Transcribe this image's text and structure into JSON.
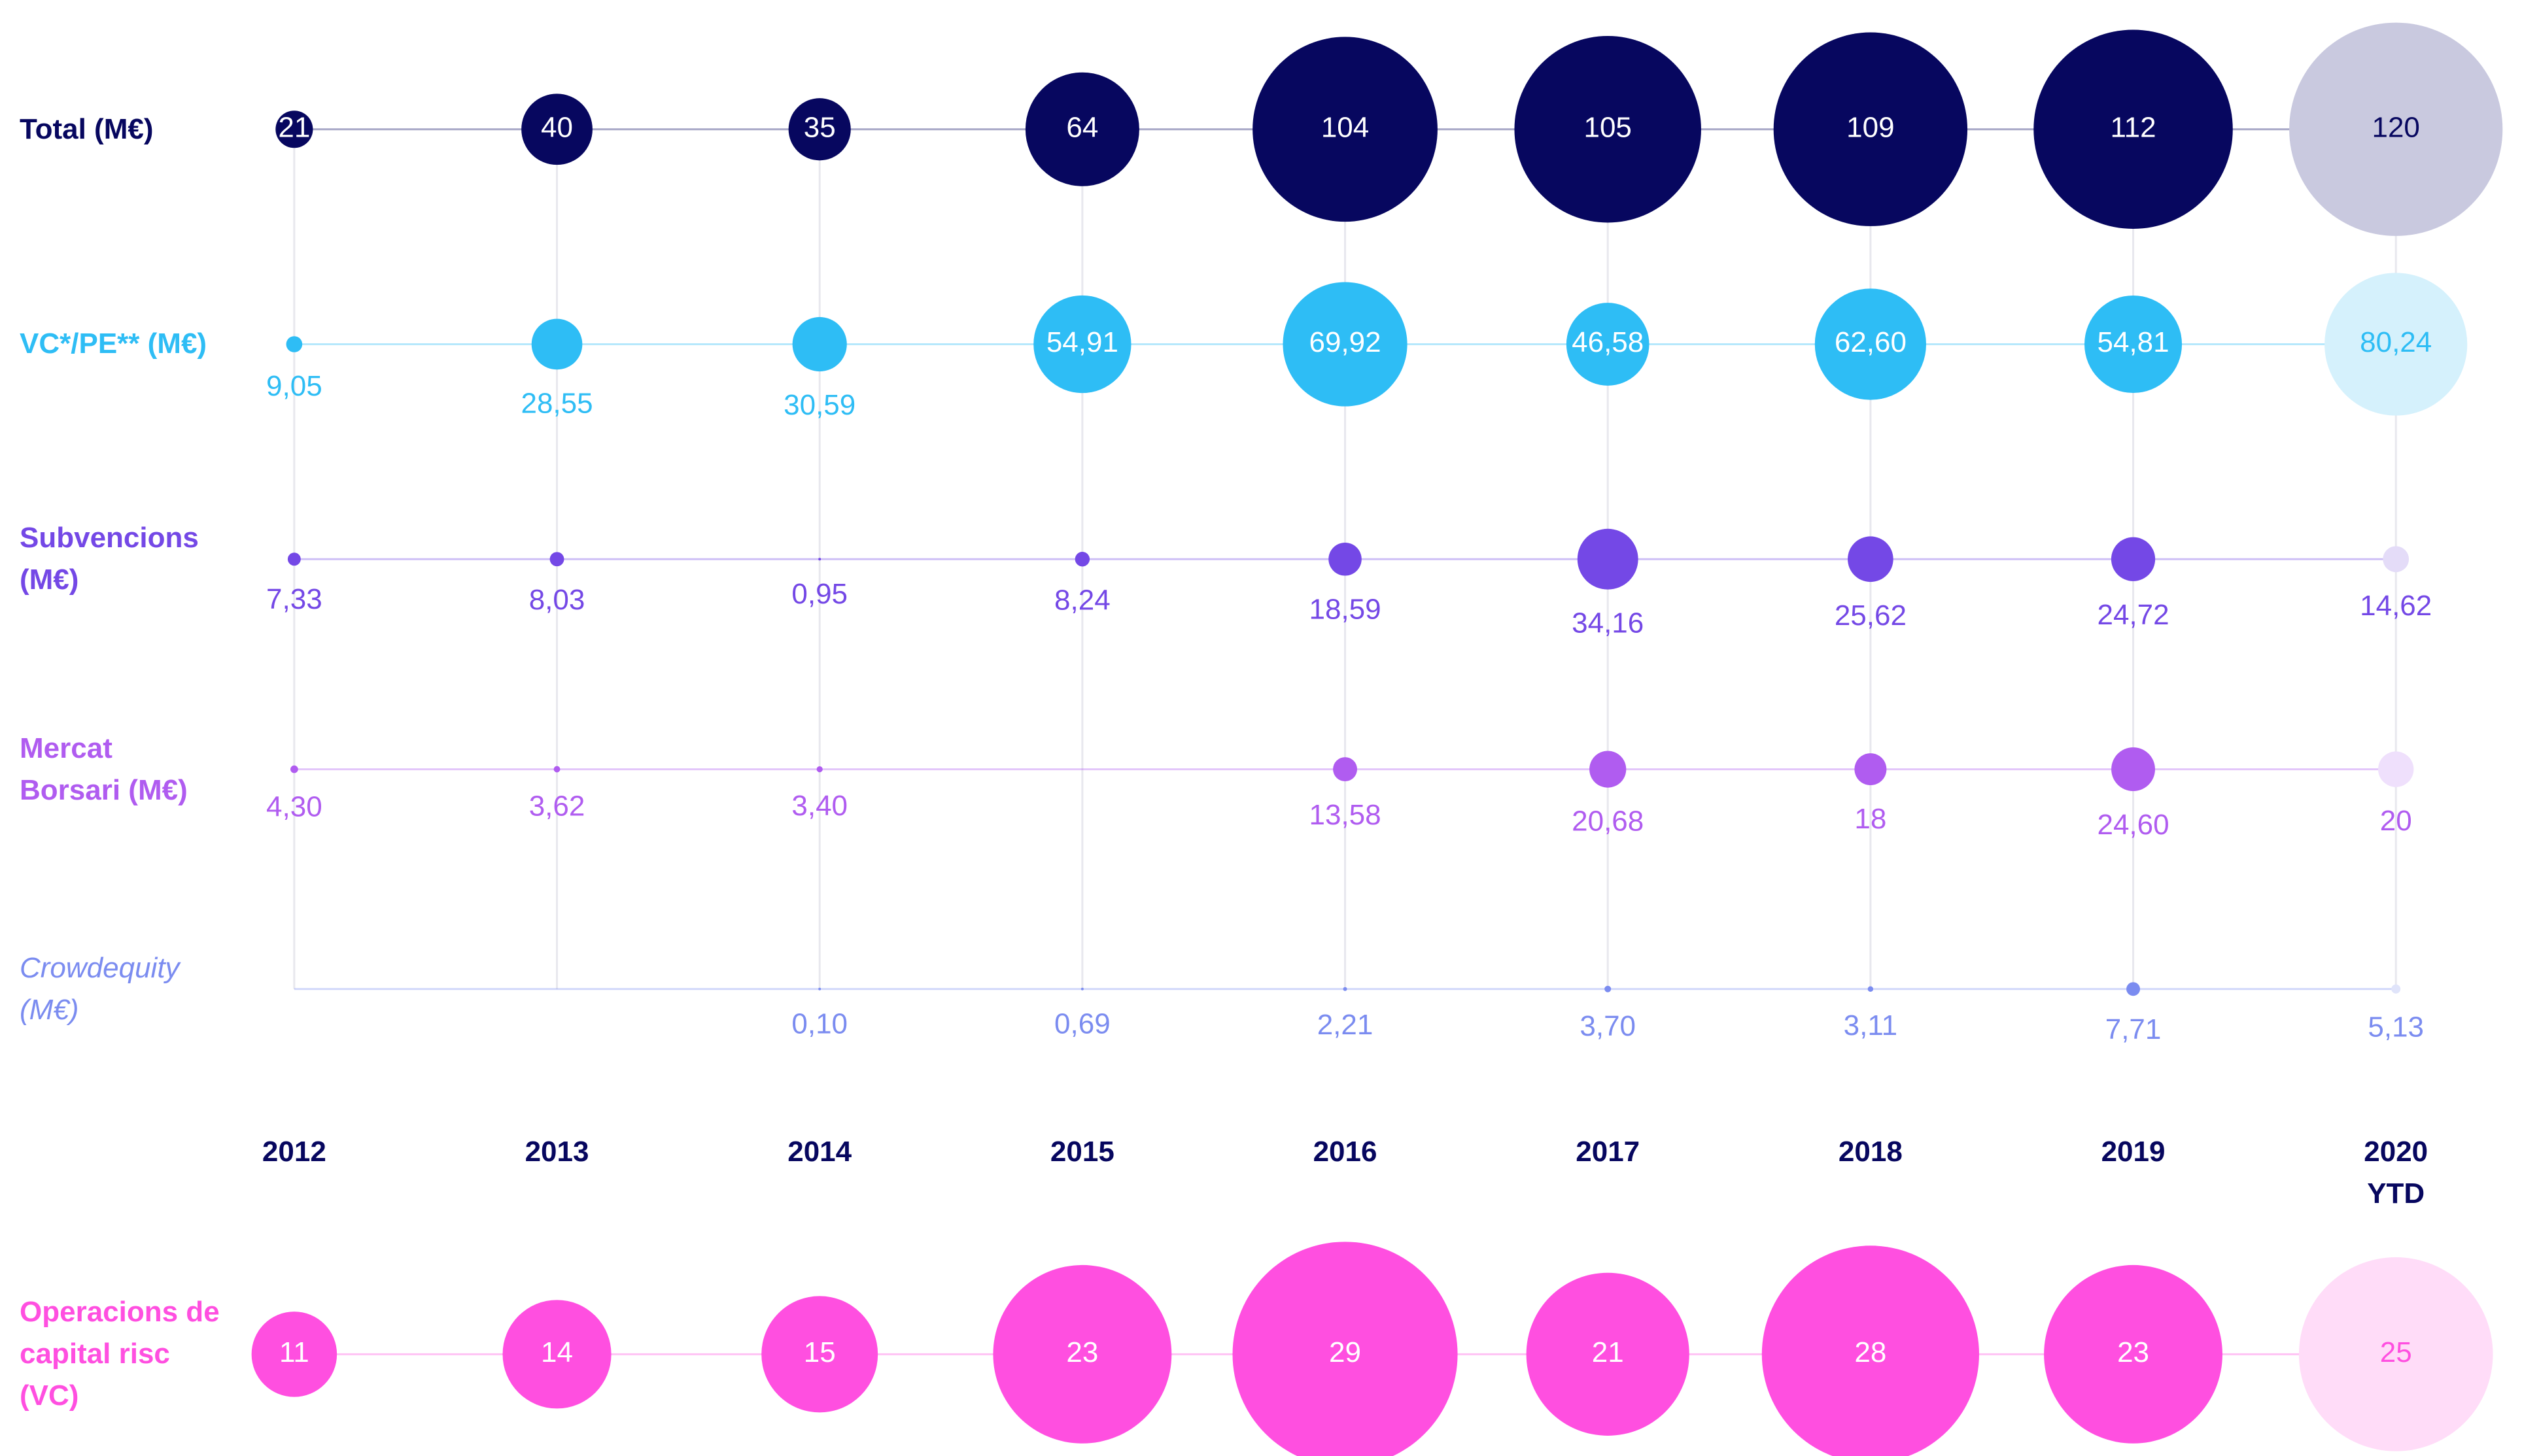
{
  "chart_data": {
    "type": "bubble",
    "categories": [
      "2012",
      "2013",
      "2014",
      "2015",
      "2016",
      "2017",
      "2018",
      "2019",
      "2020 YTD"
    ],
    "series": [
      {
        "name": "Total (M€)",
        "color": "#07075f",
        "ytd_color": "#c9c9df",
        "values": [
          21,
          40,
          35,
          64,
          104,
          105,
          109,
          112,
          120
        ]
      },
      {
        "name": "VC*/PE** (M€)",
        "color": "#2ebdf5",
        "ytd_color": "#d5f1fc",
        "values": [
          9.05,
          28.55,
          30.59,
          54.91,
          69.92,
          46.58,
          62.6,
          54.81,
          80.24
        ],
        "value_labels": [
          "9,05",
          "28,55",
          "30,59",
          "54,91",
          "69,92",
          "46,58",
          "62,60",
          "54,81",
          "80,24"
        ]
      },
      {
        "name": "Subvencions (M€)",
        "color": "#7448e6",
        "ytd_color": "#e4dcf8",
        "values": [
          7.33,
          8.03,
          0.95,
          8.24,
          18.59,
          34.16,
          25.62,
          24.72,
          14.62
        ],
        "value_labels": [
          "7,33",
          "8,03",
          "0,95",
          "8,24",
          "18,59",
          "34,16",
          "25,62",
          "24,72",
          "14,62"
        ]
      },
      {
        "name": "Mercat Borsari (M€)",
        "color": "#b05cf0",
        "ytd_color": "#efe0fc",
        "values": [
          4.3,
          3.62,
          3.4,
          null,
          13.58,
          20.68,
          18,
          24.6,
          20
        ],
        "value_labels": [
          "4,30",
          "3,62",
          "3,40",
          null,
          "13,58",
          "20,68",
          "18",
          "24,60",
          "20"
        ]
      },
      {
        "name": "Crowdequity (M€)",
        "color": "#7b8cf0",
        "ytd_color": "#e0e4fa",
        "values": [
          null,
          null,
          0.1,
          0.69,
          2.21,
          3.7,
          3.11,
          7.71,
          5.13
        ],
        "value_labels": [
          null,
          null,
          "0,10",
          "0,69",
          "2,21",
          "3,70",
          "3,11",
          "7,71",
          "5,13"
        ]
      },
      {
        "name": "Operacions de capital risc (VC)",
        "color": "#ff4fe0",
        "ytd_color": "#ffdcf8",
        "values": [
          11,
          14,
          15,
          23,
          29,
          21,
          28,
          23,
          25
        ]
      }
    ]
  }
}
